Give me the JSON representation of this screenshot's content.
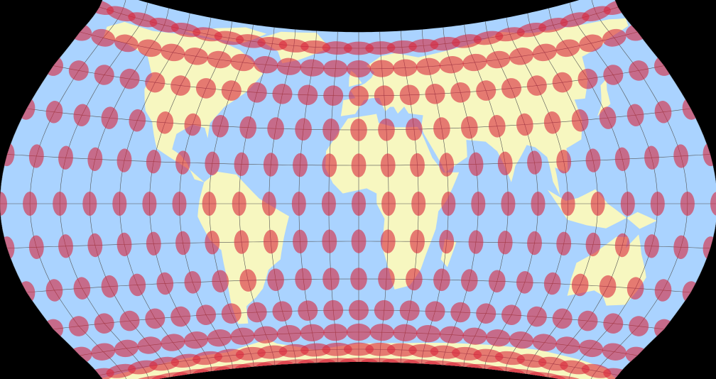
{
  "map": {
    "projection_style": "compromise world projection with Tissot indicatrices",
    "graticule_step_degrees": 15,
    "indicatrix_step_degrees": 15,
    "colors": {
      "background": "#000000",
      "ocean": "#aad3ff",
      "land": "#f7f7c0",
      "graticule": "#555555",
      "indicatrix": "#d8263c"
    }
  }
}
